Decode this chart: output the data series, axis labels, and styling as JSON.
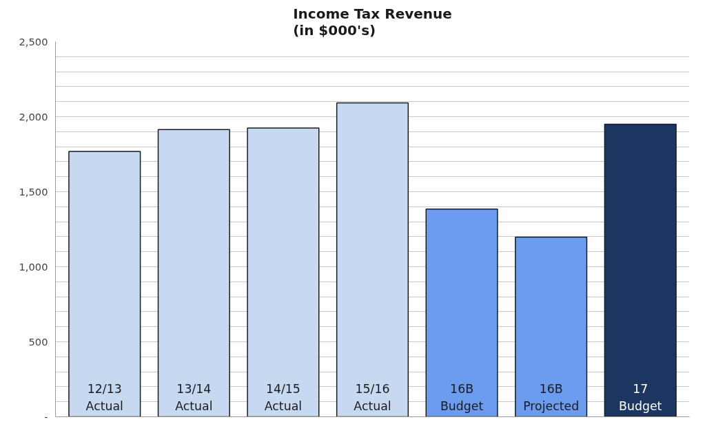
{
  "chart_data": {
    "type": "bar",
    "title": "Income Tax Revenue\n(in $000's)",
    "categories": [
      "12/13\nActual",
      "13/14\nActual",
      "14/15\nActual",
      "15/16\nActual",
      "16B\nBudget",
      "16B\nProjected",
      "17\nBudget"
    ],
    "values": [
      1768,
      1914,
      1924,
      2092,
      1384,
      1197,
      1949
    ],
    "colors": [
      "#c6d9f1",
      "#c6d9f1",
      "#c6d9f1",
      "#c6d9f1",
      "#6b9cf0",
      "#6b9cf0",
      "#1c3661"
    ],
    "ylim": [
      0,
      2500
    ],
    "yticks": [
      {
        "value": 0,
        "label": "-"
      },
      {
        "value": 100,
        "label": null
      },
      {
        "value": 200,
        "label": null
      },
      {
        "value": 300,
        "label": null
      },
      {
        "value": 400,
        "label": null
      },
      500,
      {
        "value": 600,
        "label": null
      },
      {
        "value": 700,
        "label": null
      },
      {
        "value": 800,
        "label": null
      },
      {
        "value": 900,
        "label": null
      },
      {
        "value": 1000,
        "label": "1,000"
      },
      {
        "value": 1100,
        "label": null
      },
      {
        "value": 1200,
        "label": null
      },
      {
        "value": 1300,
        "label": null
      },
      {
        "value": 1400,
        "label": null
      },
      {
        "value": 1500,
        "label": "1,500"
      },
      {
        "value": 1600,
        "label": null
      },
      {
        "value": 1700,
        "label": null
      },
      {
        "value": 1800,
        "label": null
      },
      {
        "value": 1900,
        "label": null
      },
      {
        "value": 2000,
        "label": "2,000"
      },
      {
        "value": 2100,
        "label": null
      },
      {
        "value": 2200,
        "label": null
      },
      {
        "value": 2300,
        "label": null
      },
      {
        "value": 2400,
        "label": null
      },
      {
        "value": 2500,
        "label": "2,500"
      }
    ],
    "grid": "y"
  }
}
